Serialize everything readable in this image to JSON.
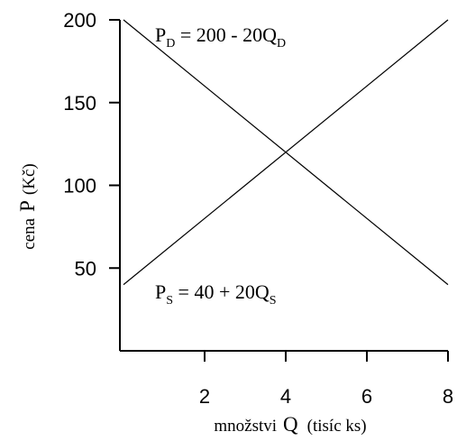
{
  "chart_data": {
    "type": "line",
    "xlabel_prefix": "množstvi",
    "xlabel_symbol": "Q",
    "xlabel_unit": "(tisíc ks)",
    "ylabel_prefix": "cena",
    "ylabel_symbol": "P",
    "ylabel_unit": "(Kč)",
    "xlim": [
      0,
      8
    ],
    "ylim": [
      0,
      200
    ],
    "xticks": [
      2,
      4,
      6,
      8
    ],
    "yticks": [
      50,
      100,
      150,
      200
    ],
    "grid": false,
    "series": [
      {
        "name": "demand",
        "x": [
          0,
          8
        ],
        "y": [
          200,
          40
        ],
        "label": {
          "P": "P",
          "sub1": "D",
          "mid": " = 200 - 20Q",
          "sub2": "D"
        }
      },
      {
        "name": "supply",
        "x": [
          0,
          8
        ],
        "y": [
          40,
          200
        ],
        "label": {
          "P": "P",
          "sub1": "S",
          "mid": " = 40 + 20Q",
          "sub2": "S"
        }
      }
    ]
  }
}
